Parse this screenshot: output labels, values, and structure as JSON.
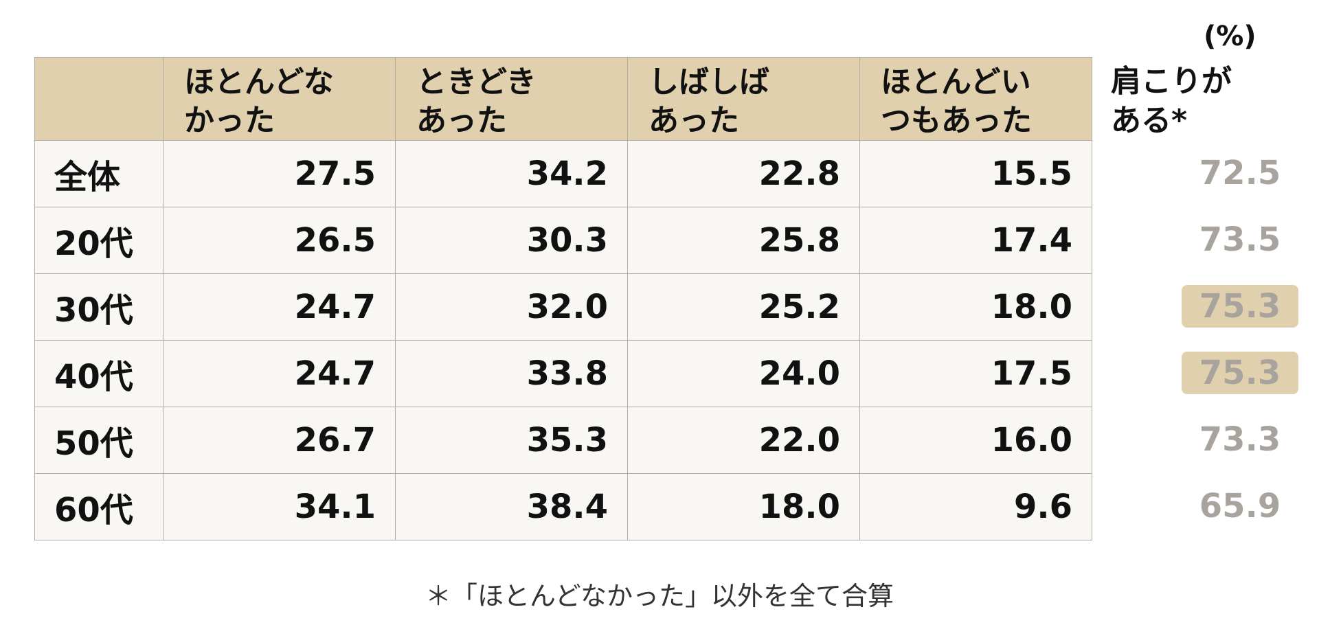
{
  "unit": "(%)",
  "header": {
    "cols": [
      [
        "ほとんどな",
        "かった"
      ],
      [
        "ときどき",
        "あった"
      ],
      [
        "しばしば",
        "あった"
      ],
      [
        "ほとんどい",
        "つもあった"
      ]
    ],
    "extra": [
      "肩こりが",
      "ある*"
    ]
  },
  "rows": [
    {
      "label": "全体",
      "values": [
        "27.5",
        "34.2",
        "22.8",
        "15.5"
      ],
      "extra": "72.5",
      "highlight": false
    },
    {
      "label": "20代",
      "values": [
        "26.5",
        "30.3",
        "25.8",
        "17.4"
      ],
      "extra": "73.5",
      "highlight": false
    },
    {
      "label": "30代",
      "values": [
        "24.7",
        "32.0",
        "25.2",
        "18.0"
      ],
      "extra": "75.3",
      "highlight": true
    },
    {
      "label": "40代",
      "values": [
        "24.7",
        "33.8",
        "24.0",
        "17.5"
      ],
      "extra": "75.3",
      "highlight": true
    },
    {
      "label": "50代",
      "values": [
        "26.7",
        "35.3",
        "22.0",
        "16.0"
      ],
      "extra": "73.3",
      "highlight": false
    },
    {
      "label": "60代",
      "values": [
        "34.1",
        "38.4",
        "18.0",
        "9.6"
      ],
      "extra": "65.9",
      "highlight": false
    }
  ],
  "footnote": "＊「ほとんどなかった」以外を全て合算",
  "colors": {
    "header_bg": "#e0d0ae",
    "cell_bg": "#f8f7f3",
    "extra_text": "#a8a39c",
    "highlight": "#e0d0ae"
  },
  "chart_data": {
    "type": "table",
    "unit": "(%)",
    "columns": [
      "ほとんどなかった",
      "ときどきあった",
      "しばしばあった",
      "ほとんどいつもあった",
      "肩こりがある*"
    ],
    "row_labels": [
      "全体",
      "20代",
      "30代",
      "40代",
      "50代",
      "60代"
    ],
    "values": [
      [
        27.5,
        34.2,
        22.8,
        15.5,
        72.5
      ],
      [
        26.5,
        30.3,
        25.8,
        17.4,
        73.5
      ],
      [
        24.7,
        32.0,
        25.2,
        18.0,
        75.3
      ],
      [
        24.7,
        33.8,
        24.0,
        17.5,
        75.3
      ],
      [
        26.7,
        35.3,
        22.0,
        16.0,
        73.3
      ],
      [
        34.1,
        38.4,
        18.0,
        9.6,
        65.9
      ]
    ]
  }
}
